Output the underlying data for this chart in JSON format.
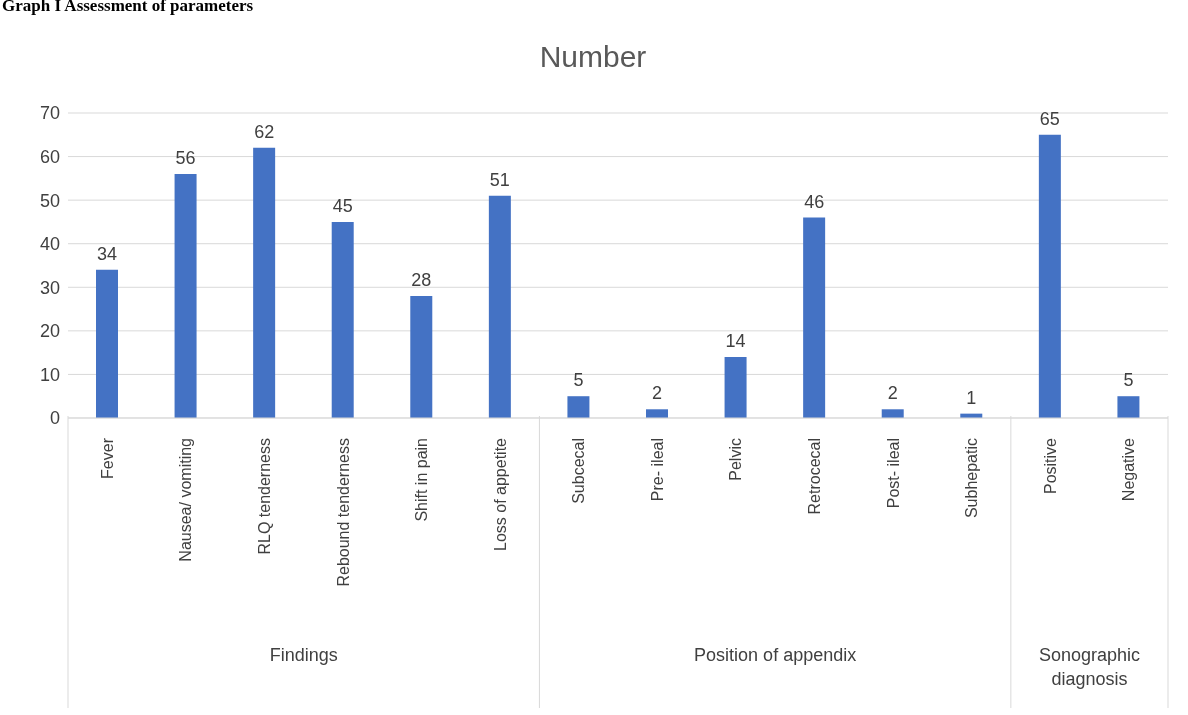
{
  "chart_data": {
    "type": "bar",
    "title": "Number",
    "categories": [
      "Fever",
      "Nausea/ vomiting",
      "RLQ tenderness",
      "Rebound tenderness",
      "Shift in pain",
      "Loss of appetite",
      "Subcecal",
      "Pre- ileal",
      "Pelvic",
      "Retrocecal",
      "Post- ileal",
      "Subhepatic",
      "Positive",
      "Negative"
    ],
    "values": [
      34,
      56,
      62,
      45,
      28,
      51,
      5,
      2,
      14,
      46,
      2,
      1,
      65,
      5
    ],
    "color": "#4472c4",
    "ylim": [
      0,
      70
    ],
    "yticks": [
      0,
      10,
      20,
      30,
      40,
      50,
      60,
      70
    ],
    "grid": "y",
    "data_labels": true,
    "annotations": [
      "Graph I Assessment of parameters",
      "Findings",
      "Position of appendix",
      "Sonographic diagnosis"
    ]
  }
}
